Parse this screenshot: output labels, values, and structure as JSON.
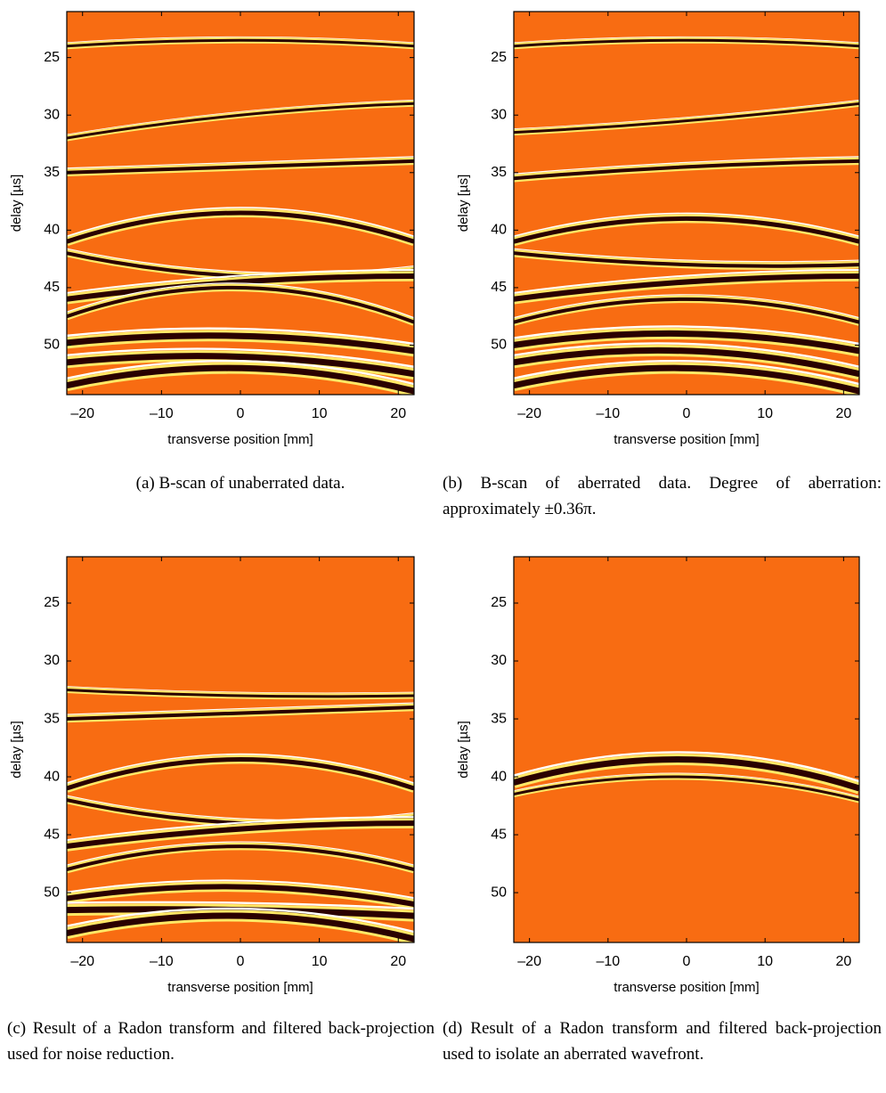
{
  "chart_data": [
    {
      "type": "image",
      "color": "#f86c12",
      "x_label": "transverse position [mm]",
      "y_label": "delay [µs]",
      "xlim": [
        -22,
        22
      ],
      "ylim": [
        21,
        54.3
      ],
      "y_reversed": true,
      "xticks": [
        {
          "value": -20,
          "label": "–20"
        },
        {
          "value": -10,
          "label": "–10"
        },
        0,
        10,
        20
      ],
      "yticks": [
        25,
        30,
        35,
        40,
        45,
        50
      ],
      "caption": "(a) B-scan of unaberrated data."
    },
    {
      "type": "image",
      "color": "#f86c12",
      "x_label": "transverse position [mm]",
      "y_label": "delay [µs]",
      "xlim": [
        -22,
        22
      ],
      "ylim": [
        21,
        54.3
      ],
      "y_reversed": true,
      "xticks": [
        {
          "value": -20,
          "label": "–20"
        },
        {
          "value": -10,
          "label": "–10"
        },
        0,
        10,
        20
      ],
      "yticks": [
        25,
        30,
        35,
        40,
        45,
        50
      ],
      "caption": "(b) B-scan of aberrated data. Degree of aberration: approximately ±0.36π."
    },
    {
      "type": "image",
      "color": "#f86c12",
      "x_label": "transverse position [mm]",
      "y_label": "delay [µs]",
      "xlim": [
        -22,
        22
      ],
      "ylim": [
        21,
        54.3
      ],
      "y_reversed": true,
      "xticks": [
        {
          "value": -20,
          "label": "–20"
        },
        {
          "value": -10,
          "label": "–10"
        },
        0,
        10,
        20
      ],
      "yticks": [
        25,
        30,
        35,
        40,
        45,
        50
      ],
      "caption": "(c) Result of a Radon transform and filtered back-projection used for noise reduction."
    },
    {
      "type": "image",
      "color": "#f86c12",
      "x_label": "transverse position [mm]",
      "y_label": "delay [µs]",
      "xlim": [
        -22,
        22
      ],
      "ylim": [
        21,
        54.3
      ],
      "y_reversed": true,
      "xticks": [
        {
          "value": -20,
          "label": "–20"
        },
        {
          "value": -10,
          "label": "–10"
        },
        0,
        10,
        20
      ],
      "yticks": [
        25,
        30,
        35,
        40,
        45,
        50
      ],
      "caption": "(d) Result of a Radon transform and filtered back-projection used to isolate an aberrated wavefront."
    }
  ]
}
